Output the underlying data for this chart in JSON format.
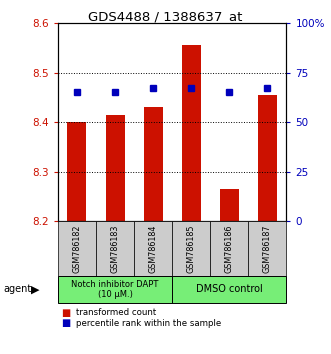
{
  "title": "GDS4488 / 1388637_at",
  "samples": [
    "GSM786182",
    "GSM786183",
    "GSM786184",
    "GSM786185",
    "GSM786186",
    "GSM786187"
  ],
  "bar_values": [
    8.4,
    8.415,
    8.43,
    8.555,
    8.265,
    8.455
  ],
  "bar_bottom": 8.2,
  "percentile_values": [
    65,
    65,
    67,
    67,
    65,
    67
  ],
  "percentile_color": "#0000bb",
  "bar_color": "#cc1100",
  "ylim": [
    8.2,
    8.6
  ],
  "yticks": [
    8.2,
    8.3,
    8.4,
    8.5,
    8.6
  ],
  "y2ticks": [
    0,
    25,
    50,
    75,
    100
  ],
  "y2labels": [
    "0",
    "25",
    "50",
    "75",
    "100%"
  ],
  "y_color": "#cc1100",
  "y2_color": "#0000bb",
  "grid_color": "#555555",
  "group1_label": "Notch inhibitor DAPT\n(10 μM.)",
  "group2_label": "DMSO control",
  "group_bg_color": "#77ee77",
  "sample_bg_color": "#cccccc",
  "agent_label": "agent",
  "legend_bar_label": "transformed count",
  "legend_dot_label": "percentile rank within the sample",
  "group1_indices": [
    0,
    1,
    2
  ],
  "group2_indices": [
    3,
    4,
    5
  ]
}
